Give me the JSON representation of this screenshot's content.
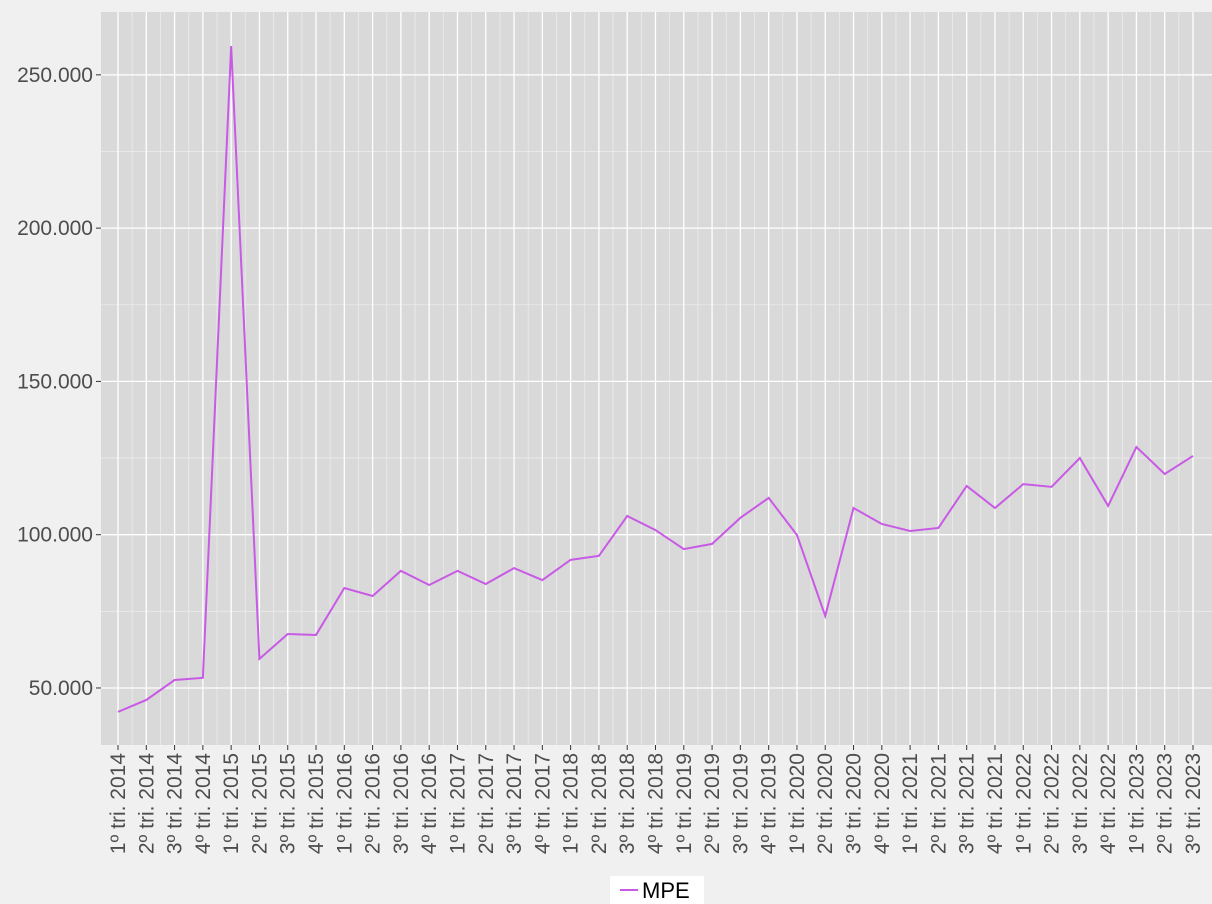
{
  "chart_data": {
    "type": "line",
    "categories": [
      "1º tri. 2014",
      "2º tri. 2014",
      "3º tri. 2014",
      "4º tri. 2014",
      "1º tri. 2015",
      "2º tri. 2015",
      "3º tri. 2015",
      "4º tri. 2015",
      "1º tri. 2016",
      "2º tri. 2016",
      "3º tri. 2016",
      "4º tri. 2016",
      "1º tri. 2017",
      "2º tri. 2017",
      "3º tri. 2017",
      "4º tri. 2017",
      "1º tri. 2018",
      "2º tri. 2018",
      "3º tri. 2018",
      "4º tri. 2018",
      "1º tri. 2019",
      "2º tri. 2019",
      "3º tri. 2019",
      "4º tri. 2019",
      "1º tri. 2020",
      "2º tri. 2020",
      "3º tri. 2020",
      "4º tri. 2020",
      "1º tri. 2021",
      "2º tri. 2021",
      "3º tri. 2021",
      "4º tri. 2021",
      "1º tri. 2022",
      "2º tri. 2022",
      "3º tri. 2022",
      "4º tri. 2022",
      "1º tri. 2023",
      "2º tri. 2023",
      "3º tri. 2023"
    ],
    "series": [
      {
        "name": "MPE",
        "color": "#c85ae6",
        "values": [
          42200,
          46100,
          52600,
          53300,
          259400,
          59500,
          67600,
          67300,
          82600,
          80000,
          88200,
          83600,
          88200,
          83900,
          89100,
          85200,
          91800,
          93100,
          106100,
          101500,
          95300,
          97000,
          105500,
          112000,
          99900,
          73500,
          108700,
          103500,
          101200,
          102200,
          115900,
          108700,
          116500,
          115600,
          125000,
          109400,
          128600,
          119800,
          125700
        ]
      }
    ],
    "ylim": [
      31400,
      270500
    ],
    "yticks": [
      {
        "value": 50000,
        "label": "50.000"
      },
      {
        "value": 100000,
        "label": "100.000"
      },
      {
        "value": 150000,
        "label": "150.000"
      },
      {
        "value": 200000,
        "label": "200.000"
      },
      {
        "value": 250000,
        "label": "250.000"
      }
    ],
    "minor_yticks": [
      75000,
      125000,
      175000,
      225000
    ],
    "grid": true,
    "legend": "bottom"
  }
}
